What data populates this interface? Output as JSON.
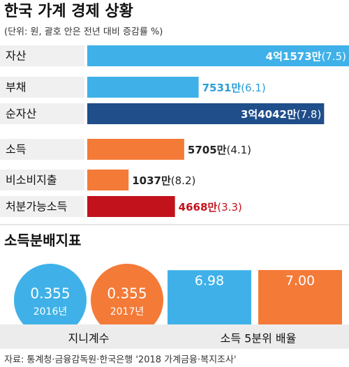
{
  "header": {
    "title": "한국 가계 경제 상황",
    "subtitle": "(단위: 원, 괄호 안은 전년 대비 증감률 %)"
  },
  "chart_data": [
    {
      "type": "hbar",
      "categories": [
        "자산",
        "부채",
        "순자산",
        "소득",
        "비소비지출",
        "처분가능소득"
      ],
      "values": [
        41573,
        7531,
        34042,
        5705,
        1037,
        4668
      ],
      "value_labels": [
        "4억1573만",
        "7531만",
        "3억4042만",
        "5705만",
        "1037만",
        "4668만"
      ],
      "changes": [
        7.5,
        6.1,
        7.8,
        4.1,
        8.2,
        3.3
      ],
      "change_labels": [
        "(7.5)",
        "(6.1)",
        "(7.8)",
        "(4.1)",
        "(8.2)",
        "(3.3)"
      ],
      "colors": [
        "#3fb1e8",
        "#3fb1e8",
        "#1f4e8a",
        "#f47a38",
        "#f47a38",
        "#c2121c"
      ],
      "label_colors": [
        "#ffffff",
        "#2a9fd8",
        "#ffffff",
        "#222222",
        "#222222",
        "#c2121c"
      ]
    },
    {
      "type": "circle",
      "title": "소득분배지표",
      "label": "지니계수",
      "categories": [
        "2016년",
        "2017년"
      ],
      "values": [
        0.355,
        0.355
      ],
      "colors": [
        "#3fb1e8",
        "#f47a38"
      ]
    },
    {
      "type": "vbar",
      "label": "소득 5분위 배율",
      "values": [
        6.98,
        7.0
      ],
      "value_labels": [
        "6.98",
        "7.00"
      ],
      "colors": [
        "#3fb1e8",
        "#f47a38"
      ]
    }
  ],
  "source": "자료: 통계청·금융감독원·한국은행 '2018 가계금융·복지조사'"
}
